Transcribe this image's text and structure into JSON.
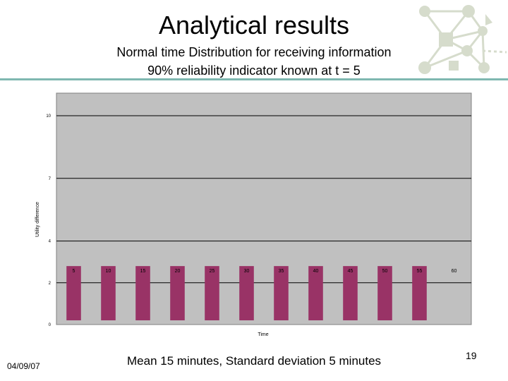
{
  "slide": {
    "title": "Analytical results",
    "subtitle1": "Normal time Distribution for receiving information",
    "subtitle2": "90% reliability indicator known at t = 5",
    "date": "04/09/07",
    "footer_note": "Mean 15 minutes, Standard deviation 5 minutes",
    "page_number": "19"
  },
  "chart_data": {
    "type": "bar",
    "xlabel": "Time",
    "ylabel": "Utility difference",
    "ylim": [
      0,
      10
    ],
    "yticks": [
      0,
      2,
      4,
      7,
      10
    ],
    "categories": [
      "5",
      "10",
      "15",
      "20",
      "25",
      "30",
      "35",
      "40",
      "45",
      "50",
      "55",
      "60"
    ],
    "values": [
      2.8,
      2.8,
      2.8,
      2.8,
      2.8,
      2.8,
      2.8,
      2.8,
      2.8,
      2.8,
      2.8,
      0
    ],
    "grid": true,
    "bar_color": "#993366",
    "plot_bg": "#c0c0c0"
  }
}
